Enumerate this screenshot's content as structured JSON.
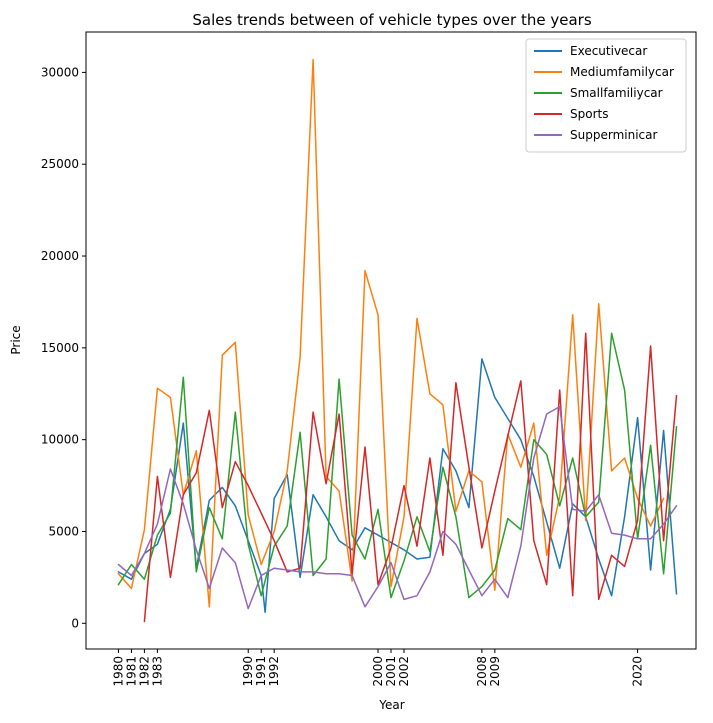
{
  "chart_data": {
    "type": "line",
    "title": "Sales trends between of vehicle types over the years",
    "xlabel": "Year",
    "ylabel": "Price",
    "xlim": [
      1977.5,
      2024.5
    ],
    "ylim": [
      -1400,
      32200
    ],
    "x_ticks": [
      1980,
      1981,
      1982,
      1983,
      1990,
      1991,
      1992,
      2000,
      2001,
      2002,
      2008,
      2009,
      2020
    ],
    "y_ticks": [
      0,
      5000,
      10000,
      15000,
      20000,
      25000,
      30000
    ],
    "grid": false,
    "legend_position": "top-right",
    "series": [
      {
        "name": "Executivecar",
        "color": "#1f77b4",
        "points": [
          [
            1980,
            2800
          ],
          [
            1981,
            2400
          ],
          [
            1982,
            3800
          ],
          [
            1983,
            4300
          ],
          [
            1984,
            6200
          ],
          [
            1985,
            10900
          ],
          [
            1986,
            3000
          ],
          [
            1987,
            6700
          ],
          [
            1988,
            7400
          ],
          [
            1989,
            6400
          ],
          [
            1990,
            4500
          ],
          [
            1991,
            2600
          ],
          [
            1991.3,
            600
          ],
          [
            1992,
            6800
          ],
          [
            1993,
            8100
          ],
          [
            1994,
            2500
          ],
          [
            1995,
            7000
          ],
          [
            1996,
            5800
          ],
          [
            1997,
            4500
          ],
          [
            1998,
            4000
          ],
          [
            1999,
            5200
          ],
          [
            2000,
            4800
          ],
          [
            2001,
            4400
          ],
          [
            2002,
            4000
          ],
          [
            2003,
            3500
          ],
          [
            2004,
            3600
          ],
          [
            2005,
            9500
          ],
          [
            2006,
            8300
          ],
          [
            2007,
            6300
          ],
          [
            2008,
            14400
          ],
          [
            2009,
            12300
          ],
          [
            2011,
            10000
          ],
          [
            2012,
            8000
          ],
          [
            2014,
            3000
          ],
          [
            2015,
            6500
          ],
          [
            2016,
            5800
          ],
          [
            2017,
            3500
          ],
          [
            2018,
            1500
          ],
          [
            2019,
            5800
          ],
          [
            2020,
            11200
          ],
          [
            2021,
            2900
          ],
          [
            2022,
            10500
          ],
          [
            2023,
            1600
          ]
        ]
      },
      {
        "name": "Mediumfamilycar",
        "color": "#ff7f0e",
        "points": [
          [
            1980,
            2700
          ],
          [
            1981,
            1900
          ],
          [
            1982,
            5100
          ],
          [
            1983,
            12800
          ],
          [
            1984,
            12300
          ],
          [
            1985,
            7000
          ],
          [
            1986,
            9400
          ],
          [
            1987,
            900
          ],
          [
            1988,
            14600
          ],
          [
            1989,
            15300
          ],
          [
            1990,
            5900
          ],
          [
            1991,
            3200
          ],
          [
            1992,
            5000
          ],
          [
            1993,
            8300
          ],
          [
            1994,
            14500
          ],
          [
            1995,
            30700
          ],
          [
            1996,
            8000
          ],
          [
            1997,
            7200
          ],
          [
            1998,
            2300
          ],
          [
            1999,
            19200
          ],
          [
            2000,
            16800
          ],
          [
            2001,
            2000
          ],
          [
            2002,
            5800
          ],
          [
            2003,
            16600
          ],
          [
            2004,
            12500
          ],
          [
            2005,
            11900
          ],
          [
            2006,
            6100
          ],
          [
            2007,
            8300
          ],
          [
            2008,
            7700
          ],
          [
            2009,
            1800
          ],
          [
            2010,
            10300
          ],
          [
            2011,
            8500
          ],
          [
            2012,
            10900
          ],
          [
            2013,
            3700
          ],
          [
            2014,
            6900
          ],
          [
            2015,
            16800
          ],
          [
            2016,
            5600
          ],
          [
            2017,
            17400
          ],
          [
            2018,
            8300
          ],
          [
            2019,
            9000
          ],
          [
            2020,
            6800
          ],
          [
            2021,
            5300
          ],
          [
            2022,
            6800
          ]
        ]
      },
      {
        "name": "Smallfamiliycar",
        "color": "#2ca02c",
        "points": [
          [
            1980,
            2100
          ],
          [
            1981,
            3200
          ],
          [
            1982,
            2400
          ],
          [
            1983,
            4800
          ],
          [
            1984,
            6000
          ],
          [
            1985,
            13400
          ],
          [
            1986,
            2800
          ],
          [
            1987,
            6300
          ],
          [
            1988,
            4600
          ],
          [
            1989,
            11500
          ],
          [
            1990,
            4300
          ],
          [
            1991,
            1500
          ],
          [
            1992,
            4200
          ],
          [
            1993,
            5300
          ],
          [
            1994,
            10400
          ],
          [
            1995,
            2600
          ],
          [
            1996,
            3500
          ],
          [
            1997,
            13300
          ],
          [
            1998,
            4800
          ],
          [
            1999,
            3500
          ],
          [
            2000,
            6200
          ],
          [
            2001,
            1400
          ],
          [
            2002,
            3400
          ],
          [
            2003,
            5800
          ],
          [
            2004,
            3900
          ],
          [
            2005,
            8500
          ],
          [
            2006,
            5800
          ],
          [
            2007,
            1400
          ],
          [
            2008,
            2000
          ],
          [
            2009,
            2900
          ],
          [
            2010,
            5700
          ],
          [
            2011,
            5100
          ],
          [
            2012,
            10000
          ],
          [
            2013,
            9200
          ],
          [
            2014,
            6400
          ],
          [
            2015,
            9000
          ],
          [
            2016,
            5800
          ],
          [
            2017,
            6600
          ],
          [
            2018,
            15800
          ],
          [
            2019,
            12700
          ],
          [
            2020,
            4600
          ],
          [
            2021,
            9700
          ],
          [
            2022,
            2700
          ],
          [
            2023,
            10700
          ]
        ]
      },
      {
        "name": "Sports",
        "color": "#d62728",
        "points": [
          [
            1982,
            100
          ],
          [
            1983,
            8000
          ],
          [
            1984,
            2500
          ],
          [
            1985,
            7000
          ],
          [
            1986,
            8200
          ],
          [
            1987,
            11600
          ],
          [
            1988,
            6300
          ],
          [
            1989,
            8800
          ],
          [
            1990,
            7500
          ],
          [
            1991,
            6000
          ],
          [
            1992,
            4500
          ],
          [
            1993,
            2800
          ],
          [
            1994,
            3000
          ],
          [
            1995,
            11500
          ],
          [
            1996,
            7600
          ],
          [
            1997,
            11400
          ],
          [
            1998,
            2700
          ],
          [
            1999,
            9600
          ],
          [
            2000,
            2100
          ],
          [
            2001,
            4100
          ],
          [
            2002,
            7500
          ],
          [
            2003,
            4200
          ],
          [
            2004,
            9000
          ],
          [
            2005,
            3700
          ],
          [
            2006,
            13100
          ],
          [
            2007,
            8500
          ],
          [
            2008,
            4100
          ],
          [
            2009,
            7200
          ],
          [
            2010,
            10200
          ],
          [
            2011,
            13200
          ],
          [
            2012,
            4500
          ],
          [
            2013,
            2100
          ],
          [
            2014,
            12700
          ],
          [
            2015,
            1500
          ],
          [
            2016,
            15800
          ],
          [
            2017,
            1300
          ],
          [
            2018,
            3700
          ],
          [
            2019,
            3100
          ],
          [
            2020,
            5600
          ],
          [
            2021,
            15100
          ],
          [
            2022,
            4500
          ],
          [
            2023,
            12400
          ]
        ]
      },
      {
        "name": "Supperminicar",
        "color": "#9467bd",
        "points": [
          [
            1980,
            3200
          ],
          [
            1981,
            2600
          ],
          [
            1982,
            3800
          ],
          [
            1983,
            5400
          ],
          [
            1984,
            8400
          ],
          [
            1985,
            6500
          ],
          [
            1986,
            4000
          ],
          [
            1987,
            1900
          ],
          [
            1988,
            4100
          ],
          [
            1989,
            3300
          ],
          [
            1990,
            800
          ],
          [
            1991,
            2600
          ],
          [
            1992,
            3000
          ],
          [
            1993,
            2900
          ],
          [
            1994,
            2800
          ],
          [
            1995,
            2800
          ],
          [
            1996,
            2700
          ],
          [
            1997,
            2700
          ],
          [
            1998,
            2600
          ],
          [
            1999,
            900
          ],
          [
            2000,
            2000
          ],
          [
            2001,
            3300
          ],
          [
            2002,
            1300
          ],
          [
            2003,
            1500
          ],
          [
            2004,
            2800
          ],
          [
            2005,
            5000
          ],
          [
            2006,
            4300
          ],
          [
            2007,
            2900
          ],
          [
            2008,
            1500
          ],
          [
            2009,
            2400
          ],
          [
            2010,
            1400
          ],
          [
            2011,
            4200
          ],
          [
            2012,
            9000
          ],
          [
            2013,
            11400
          ],
          [
            2014,
            11800
          ],
          [
            2015,
            6200
          ],
          [
            2016,
            6100
          ],
          [
            2017,
            7000
          ],
          [
            2018,
            4900
          ],
          [
            2019,
            4800
          ],
          [
            2020,
            4600
          ],
          [
            2021,
            4600
          ],
          [
            2022,
            5400
          ],
          [
            2023,
            6400
          ]
        ]
      }
    ]
  }
}
